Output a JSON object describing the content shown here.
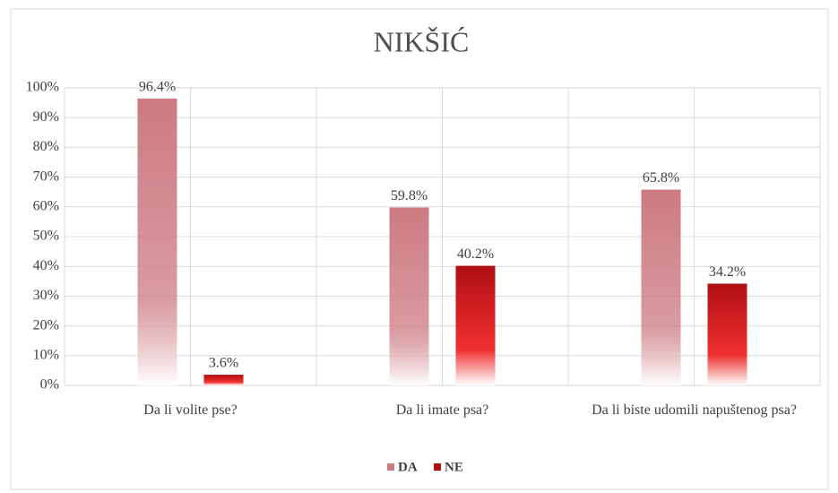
{
  "chart_data": {
    "type": "bar",
    "title": "NIKŠIĆ",
    "categories": [
      "Da li volite pse?",
      "Da li imate psa?",
      "Da li biste udomili napuštenog psa?"
    ],
    "series": [
      {
        "name": "DA",
        "color": "#cd7a82",
        "values": [
          96.4,
          59.8,
          65.8
        ],
        "value_labels": [
          "96.4%",
          "59.8%",
          "65.8%"
        ]
      },
      {
        "name": "NE",
        "color": "#b00f12",
        "values": [
          3.6,
          40.2,
          34.2
        ],
        "value_labels": [
          "3.6%",
          "40.2%",
          "34.2%"
        ]
      }
    ],
    "ylim": [
      0,
      100
    ],
    "yticks": [
      {
        "value": 0,
        "label": "0%"
      },
      {
        "value": 10,
        "label": "10%"
      },
      {
        "value": 20,
        "label": "20%"
      },
      {
        "value": 30,
        "label": "30%"
      },
      {
        "value": 40,
        "label": "40%"
      },
      {
        "value": 50,
        "label": "50%"
      },
      {
        "value": 60,
        "label": "60%"
      },
      {
        "value": 70,
        "label": "70%"
      },
      {
        "value": 80,
        "label": "80%"
      },
      {
        "value": 90,
        "label": "90%"
      },
      {
        "value": 100,
        "label": "100%"
      }
    ],
    "grid": true,
    "legend": "bottom"
  }
}
